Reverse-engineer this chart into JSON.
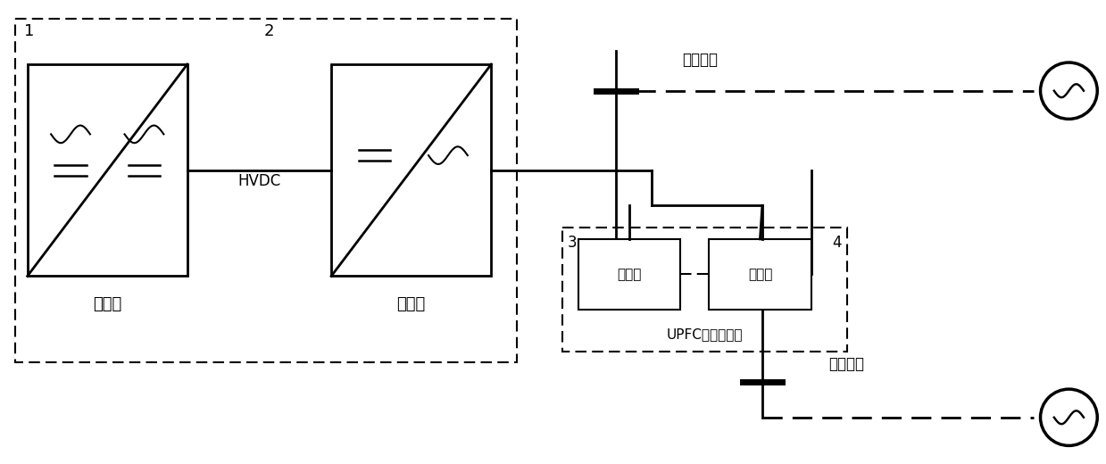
{
  "bg_color": "#ffffff",
  "line_color": "#000000",
  "label1_text": "1",
  "label2_text": "2",
  "label3_text": "3",
  "label4_text": "4",
  "rectifier_label": "整流站",
  "inverter_label": "逆变站",
  "hvdc_label": "HVDC",
  "ac_bus_label1": "交流母线",
  "ac_bus_label2": "交流母线",
  "upfc_label": "UPFC并联侧故障",
  "parallel_label": "并联侧",
  "series_label": "串联侧"
}
